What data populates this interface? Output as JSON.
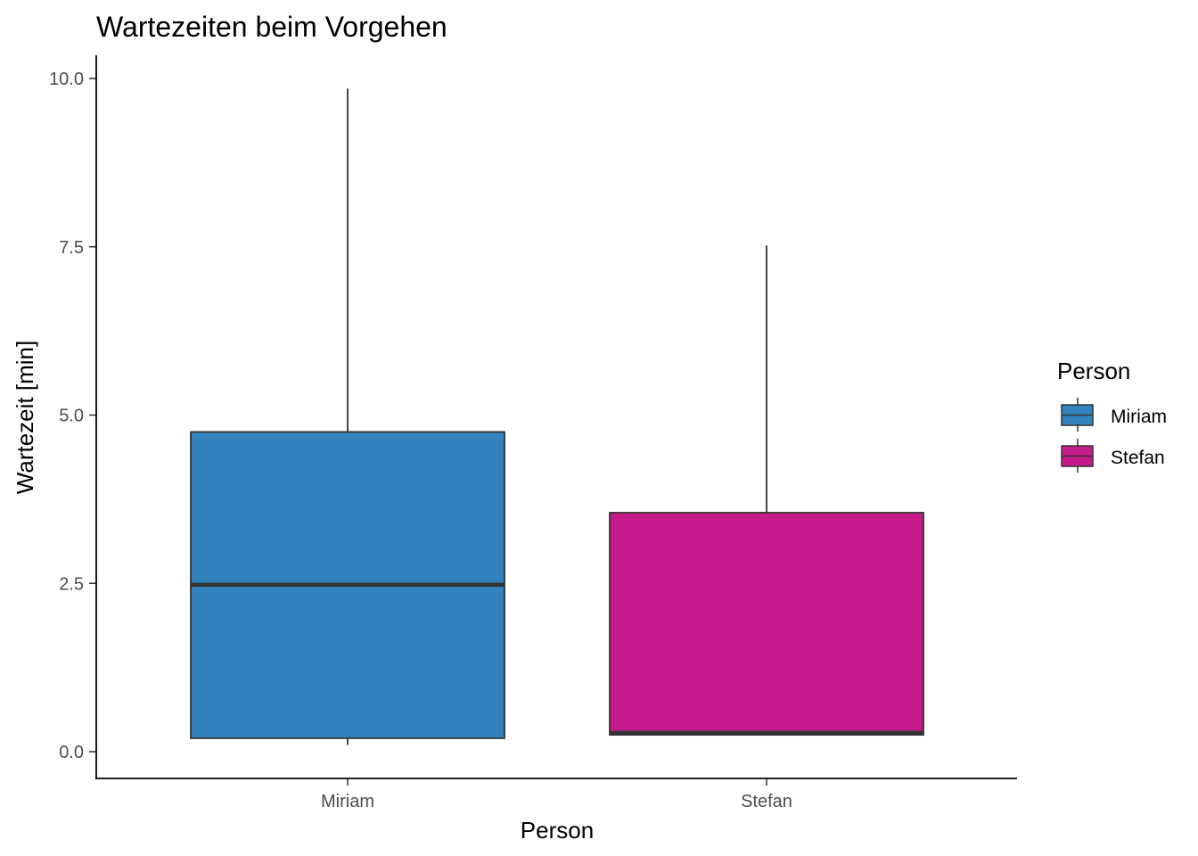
{
  "chart_data": {
    "type": "box",
    "title": "Wartezeiten beim Vorgehen",
    "xlabel": "Person",
    "ylabel": "Wartezeit [min]",
    "ylim": [
      -0.4,
      10.3
    ],
    "y_ticks": [
      "0.0",
      "2.5",
      "5.0",
      "7.5",
      "10.0"
    ],
    "y_tick_values": [
      0,
      2.5,
      5,
      7.5,
      10
    ],
    "grid": false,
    "legend": {
      "title": "Person",
      "position": "right"
    },
    "categories": [
      "Miriam",
      "Stefan"
    ],
    "series": [
      {
        "name": "Miriam",
        "min": 0.1,
        "q1": 0.2,
        "median": 2.48,
        "q3": 4.75,
        "max": 9.85,
        "color": "#3182BD"
      },
      {
        "name": "Stefan",
        "min": 0.25,
        "q1": 0.25,
        "median": 0.28,
        "q3": 3.55,
        "max": 7.52,
        "color": "#C51B8A"
      }
    ]
  }
}
